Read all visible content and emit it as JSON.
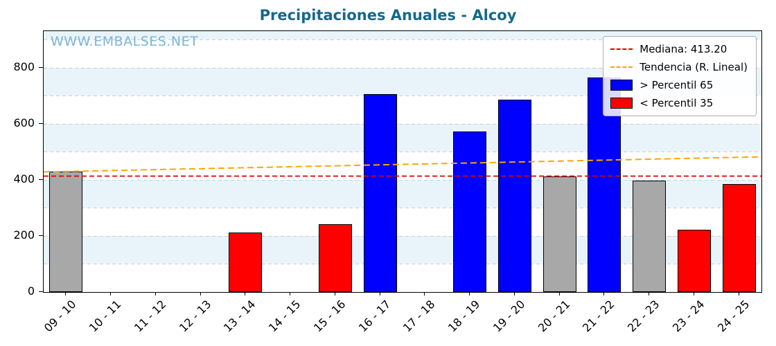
{
  "colors": {
    "blue": "#0000ff",
    "red": "#ff0000",
    "gray": "#a8a8a8",
    "median_line": "#dd0000",
    "trend_line": "#ffa500",
    "title": "#15688c",
    "watermark": "#7cb4d6",
    "band": "#e9f3fa"
  },
  "chart_data": {
    "type": "bar",
    "title": "Precipitaciones Anuales - Alcoy",
    "watermark": "WWW.EMBALSES.NET",
    "categories": [
      "09 - 10",
      "10 - 11",
      "11 - 12",
      "12 - 13",
      "13 - 14",
      "14 - 15",
      "15 - 16",
      "16 - 17",
      "17 - 18",
      "18 - 19",
      "19 - 20",
      "20 - 21",
      "21 - 22",
      "22 - 23",
      "23 - 24",
      "24 - 25"
    ],
    "values": [
      430,
      null,
      null,
      null,
      212,
      null,
      242,
      705,
      null,
      572,
      686,
      413,
      765,
      396,
      221,
      385
    ],
    "bar_colors": [
      "gray",
      null,
      null,
      null,
      "red",
      null,
      "red",
      "blue",
      null,
      "blue",
      "blue",
      "gray",
      "blue",
      "gray",
      "red",
      "red"
    ],
    "yticks": [
      0,
      200,
      400,
      600,
      800
    ],
    "ylim": [
      0,
      930
    ],
    "grid": true,
    "median": 413.2,
    "trend": {
      "start": 428,
      "end": 482
    },
    "legend_position": "top-right",
    "legend": [
      {
        "type": "line",
        "color": "#dd0000",
        "label": "Mediana: 413.20"
      },
      {
        "type": "line",
        "color": "#ffa500",
        "label": "Tendencia (R. Lineal)"
      },
      {
        "type": "patch",
        "color": "#0000ff",
        "label": "> Percentil 65"
      },
      {
        "type": "patch",
        "color": "#ff0000",
        "label": "< Percentil 35"
      }
    ]
  }
}
